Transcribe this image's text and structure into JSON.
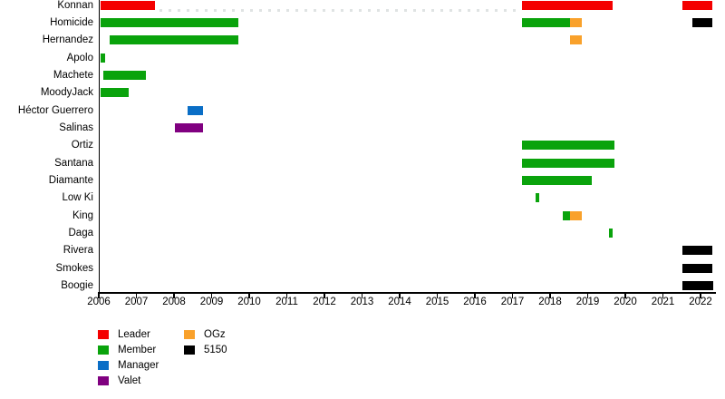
{
  "chart_data": {
    "type": "bar",
    "subtype": "timeline-gantt",
    "title": "",
    "xlabel": "",
    "ylabel": "",
    "x_axis": {
      "start": 2006,
      "end": 2022,
      "tick_step": 1,
      "tick_labels": [
        "2006",
        "2007",
        "2008",
        "2009",
        "2010",
        "2011",
        "2012",
        "2013",
        "2014",
        "2015",
        "2016",
        "2017",
        "2018",
        "2019",
        "2020",
        "2021",
        "2022"
      ]
    },
    "grid": false,
    "legend_position": "bottom-left",
    "legend": [
      {
        "label": "Leader",
        "role": "Leader"
      },
      {
        "label": "Member",
        "role": "Member"
      },
      {
        "label": "Manager",
        "role": "Manager"
      },
      {
        "label": "Valet",
        "role": "Valet"
      },
      {
        "label": "OGz",
        "role": "OGz"
      },
      {
        "label": "5150",
        "role": "5150"
      }
    ],
    "colors": {
      "Leader": "#f40000",
      "Member": "#0aa30c",
      "Manager": "#0a6ec6",
      "Valet": "#800080",
      "OGz": "#f9a12b",
      "5150": "#000000",
      "axis": "#000000",
      "dotted_gap": "#dfe3e3",
      "background": "#ffffff"
    },
    "rows": [
      {
        "name": "Konnan",
        "segments": [
          {
            "role": "Leader",
            "start": 2006.05,
            "end": 2007.5
          },
          {
            "role": "Leader",
            "start": 2017.25,
            "end": 2019.67
          },
          {
            "role": "Leader",
            "start": 2021.53,
            "end": 2022.32
          }
        ],
        "dotted_gap": {
          "start": 2007.62,
          "end": 2017.18
        }
      },
      {
        "name": "Homicide",
        "segments": [
          {
            "role": "Member",
            "start": 2006.05,
            "end": 2009.72
          },
          {
            "role": "Member",
            "start": 2017.25,
            "end": 2018.53
          },
          {
            "role": "OGz",
            "start": 2018.53,
            "end": 2018.85
          },
          {
            "role": "5150",
            "start": 2021.79,
            "end": 2022.32
          }
        ]
      },
      {
        "name": "Hernandez",
        "segments": [
          {
            "role": "Member",
            "start": 2006.28,
            "end": 2009.72
          },
          {
            "role": "OGz",
            "start": 2018.53,
            "end": 2018.85
          }
        ]
      },
      {
        "name": "Apolo",
        "segments": [
          {
            "role": "Member",
            "start": 2006.05,
            "end": 2006.17
          }
        ]
      },
      {
        "name": "Machete",
        "segments": [
          {
            "role": "Member",
            "start": 2006.13,
            "end": 2007.26
          }
        ]
      },
      {
        "name": "MoodyJack",
        "segments": [
          {
            "role": "Member",
            "start": 2006.05,
            "end": 2006.8
          }
        ]
      },
      {
        "name": "Héctor Guerrero",
        "segments": [
          {
            "role": "Manager",
            "start": 2008.35,
            "end": 2008.78
          }
        ]
      },
      {
        "name": "Salinas",
        "segments": [
          {
            "role": "Valet",
            "start": 2008.03,
            "end": 2008.76
          }
        ]
      },
      {
        "name": "Ortiz",
        "segments": [
          {
            "role": "Member",
            "start": 2017.25,
            "end": 2019.7
          }
        ]
      },
      {
        "name": "Santana",
        "segments": [
          {
            "role": "Member",
            "start": 2017.25,
            "end": 2019.7
          }
        ]
      },
      {
        "name": "Diamante",
        "segments": [
          {
            "role": "Member",
            "start": 2017.25,
            "end": 2019.12
          }
        ]
      },
      {
        "name": "Low Ki",
        "segments": [
          {
            "role": "Member",
            "start": 2017.62,
            "end": 2017.7
          }
        ]
      },
      {
        "name": "King",
        "segments": [
          {
            "role": "Member",
            "start": 2018.34,
            "end": 2018.52
          },
          {
            "role": "OGz",
            "start": 2018.52,
            "end": 2018.85
          }
        ]
      },
      {
        "name": "Daga",
        "segments": [
          {
            "role": "Member",
            "start": 2019.57,
            "end": 2019.67
          }
        ]
      },
      {
        "name": "Rivera",
        "segments": [
          {
            "role": "5150",
            "start": 2021.53,
            "end": 2022.32
          }
        ]
      },
      {
        "name": "Smokes",
        "segments": [
          {
            "role": "5150",
            "start": 2021.53,
            "end": 2022.32
          }
        ]
      },
      {
        "name": "Boogie",
        "segments": [
          {
            "role": "5150",
            "start": 2021.53,
            "end": 2022.34
          }
        ]
      }
    ]
  }
}
